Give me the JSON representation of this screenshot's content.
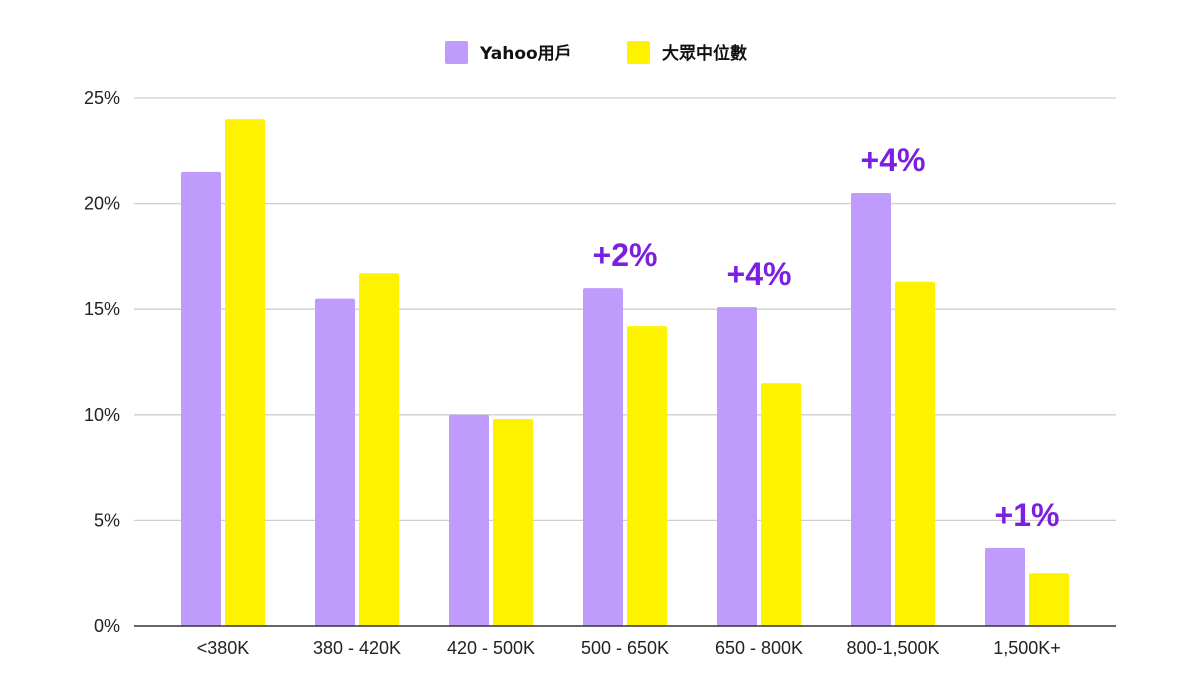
{
  "chart_data": {
    "type": "bar",
    "categories": [
      "<380K",
      "380 - 420K",
      "420 - 500K",
      "500 - 650K",
      "650 - 800K",
      "800-1,500K",
      "1,500K+"
    ],
    "series": [
      {
        "name": "Yahoo用戶",
        "color": "#bf9cfb",
        "values": [
          21.5,
          15.5,
          10.0,
          16.0,
          15.1,
          20.5,
          3.7
        ]
      },
      {
        "name": "大眾中位數",
        "color": "#fff200",
        "values": [
          24.0,
          16.7,
          9.8,
          14.2,
          11.5,
          16.3,
          2.5
        ]
      }
    ],
    "yticks": [
      "0%",
      "5%",
      "10%",
      "15%",
      "20%",
      "25%"
    ],
    "ylim": [
      0,
      25
    ],
    "grid": true,
    "legend_position": "top-center",
    "annotations": [
      {
        "category": "500 - 650K",
        "text": "+2%"
      },
      {
        "category": "650 - 800K",
        "text": "+4%"
      },
      {
        "category": "800-1,500K",
        "text": "+4%"
      },
      {
        "category": "1,500K+",
        "text": "+1%"
      }
    ],
    "annotation_color": "#7b1fe0",
    "title": "",
    "xlabel": "",
    "ylabel": ""
  }
}
